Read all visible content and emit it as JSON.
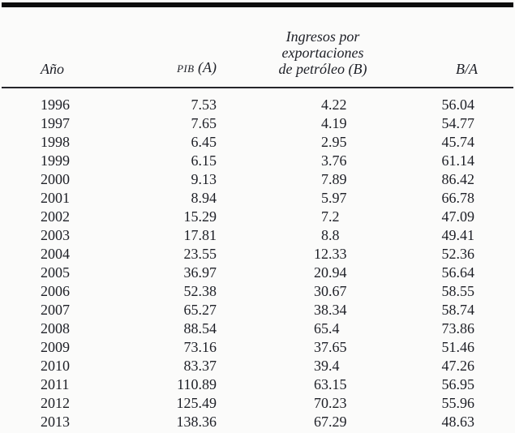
{
  "table": {
    "headers": {
      "year": "Año",
      "pib_sc": "PIB",
      "pib_rest": " (A)",
      "oil_lines": [
        "Ingresos por",
        "exportaciones",
        "de petróleo (B)"
      ],
      "ratio": "B/A"
    },
    "rows": [
      [
        "1996",
        "7.53",
        "4.22",
        "56.04"
      ],
      [
        "1997",
        "7.65",
        "4.19",
        "54.77"
      ],
      [
        "1998",
        "6.45",
        "2.95",
        "45.74"
      ],
      [
        "1999",
        "6.15",
        "3.76",
        "61.14"
      ],
      [
        "2000",
        "9.13",
        "7.89",
        "86.42"
      ],
      [
        "2001",
        "8.94",
        "5.97",
        "66.78"
      ],
      [
        "2002",
        "15.29",
        "7.2",
        "47.09"
      ],
      [
        "2003",
        "17.81",
        "8.8",
        "49.41"
      ],
      [
        "2004",
        "23.55",
        "12.33",
        "52.36"
      ],
      [
        "2005",
        "36.97",
        "20.94",
        "56.64"
      ],
      [
        "2006",
        "52.38",
        "30.67",
        "58.55"
      ],
      [
        "2007",
        "65.27",
        "38.34",
        "58.74"
      ],
      [
        "2008",
        "88.54",
        "65.4",
        "73.86"
      ],
      [
        "2009",
        "73.16",
        "37.65",
        "51.46"
      ],
      [
        "2010",
        "83.37",
        "39.4",
        "47.26"
      ],
      [
        "2011",
        "110.89",
        "63.15",
        "56.95"
      ],
      [
        "2012",
        "125.49",
        "70.23",
        "55.96"
      ],
      [
        "2013",
        "138.36",
        "67.29",
        "48.63"
      ]
    ]
  },
  "colors": {
    "rule": "#0d0d0d",
    "text": "#1d1f26",
    "background": "#fbfbfa"
  }
}
